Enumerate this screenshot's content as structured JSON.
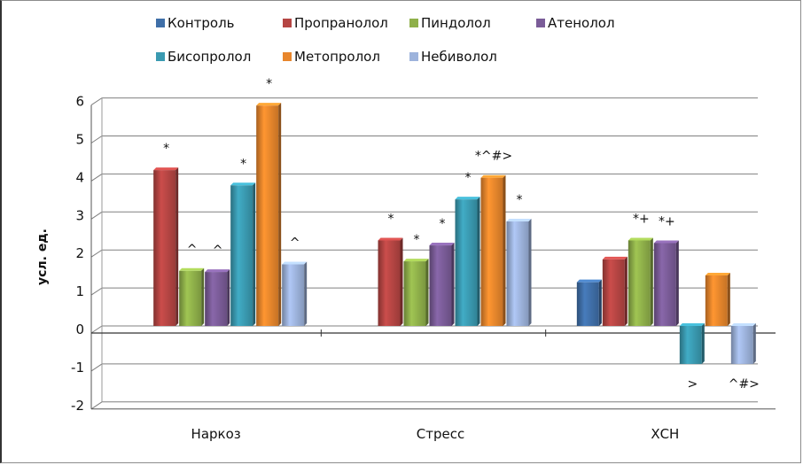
{
  "chart_data": {
    "type": "bar",
    "title": "",
    "xlabel": "",
    "ylabel": "усл. ед.",
    "ylim": [
      -2,
      6
    ],
    "yticks": [
      -2,
      -1,
      0,
      1,
      2,
      3,
      4,
      5,
      6
    ],
    "grid": true,
    "legend_position": "top",
    "categories": [
      "Наркоз",
      "Стресс",
      "ХСН"
    ],
    "series": [
      {
        "name": "Контроль",
        "color": "#3f6fa8",
        "values": [
          null,
          null,
          1.15
        ]
      },
      {
        "name": "Пропранолол",
        "color": "#b54543",
        "values": [
          4.1,
          2.25,
          1.75
        ]
      },
      {
        "name": "Пиндолол",
        "color": "#8fb04a",
        "values": [
          1.45,
          1.7,
          2.25
        ]
      },
      {
        "name": "Атенолол",
        "color": "#7a5c98",
        "values": [
          1.42,
          2.12,
          2.18
        ]
      },
      {
        "name": "Бисопролол",
        "color": "#3a9ab1",
        "values": [
          3.7,
          3.33,
          -1.0
        ]
      },
      {
        "name": "Метопролол",
        "color": "#e8862c",
        "values": [
          5.8,
          3.9,
          1.33
        ]
      },
      {
        "name": "Небиволол",
        "color": "#9db3dc",
        "values": [
          1.62,
          2.75,
          -1.0
        ]
      }
    ],
    "annotations": [
      {
        "category": 0,
        "series": 1,
        "text": "*"
      },
      {
        "category": 0,
        "series": 2,
        "text": "^"
      },
      {
        "category": 0,
        "series": 3,
        "text": "^"
      },
      {
        "category": 0,
        "series": 4,
        "text": "*"
      },
      {
        "category": 0,
        "series": 5,
        "text": "*"
      },
      {
        "category": 0,
        "series": 6,
        "text": "^"
      },
      {
        "category": 1,
        "series": 1,
        "text": "*"
      },
      {
        "category": 1,
        "series": 2,
        "text": "*"
      },
      {
        "category": 1,
        "series": 3,
        "text": "*"
      },
      {
        "category": 1,
        "series": 4,
        "text": "*"
      },
      {
        "category": 1,
        "series": 5,
        "text": "*^#>"
      },
      {
        "category": 1,
        "series": 6,
        "text": "*"
      },
      {
        "category": 2,
        "series": 2,
        "text": "*+"
      },
      {
        "category": 2,
        "series": 3,
        "text": "*+"
      },
      {
        "category": 2,
        "series": 4,
        "text": ">"
      },
      {
        "category": 2,
        "series": 6,
        "text": "^#>"
      }
    ]
  }
}
